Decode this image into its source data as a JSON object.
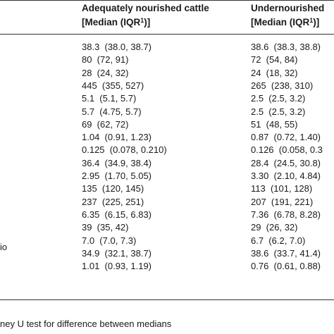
{
  "header": {
    "col1_line1": "Adequately nourished cattle",
    "col1_line2": "[Median (IQR",
    "col1_sup": "1",
    "col1_end": ")]",
    "col2_line1": "Undernourished",
    "col2_line2": "[Median (IQR",
    "col2_sup": "1",
    "col2_end": ")]"
  },
  "rows": [
    {
      "a": "38.3  (38.0, 38.7)",
      "b": "38.6  (38.3, 38.8)"
    },
    {
      "a": "80  (72, 91)",
      "b": "72  (54, 84)"
    },
    {
      "a": "28  (24, 32)",
      "b": "24  (18, 32)"
    },
    {
      "a": "445  (355, 527)",
      "b": "265  (238, 310)"
    },
    {
      "a": "5.1  (5.1, 5.7)",
      "b": "2.5  (2.5, 3.2)"
    },
    {
      "a": "5.7  (4.75, 5.7)",
      "b": "2.5  (2.5, 3.2)"
    },
    {
      "a": "69  (62, 72)",
      "b": "51  (48, 55)"
    },
    {
      "a": "1.04  (0.91, 1.23)",
      "b": "0.87  (0.72, 1.40)"
    },
    {
      "a": "0.125  (0.078, 0.210)",
      "b": "0.126  (0.058, 0.3"
    },
    {
      "a": "36.4  (34.9, 38.4)",
      "b": "28.4  (24.5, 30.8)"
    },
    {
      "a": "2.95  (1.70, 5.05)",
      "b": "3.30  (2.10, 4.84)"
    },
    {
      "a": "135  (120, 145)",
      "b": "113  (101, 128)"
    },
    {
      "a": "237  (225, 251)",
      "b": "207  (191, 221)"
    },
    {
      "a": "6.35  (6.15, 6.83)",
      "b": "7.36  (6.78, 8.28)"
    },
    {
      "a": "39  (35, 42)",
      "b": "29  (26, 32)"
    },
    {
      "a": "7.0  (7.0, 7.3)",
      "b": "6.7  (6.2, 7.0)"
    },
    {
      "a": "34.9  (32.1, 38.7)",
      "b": "38.6  (33.7, 41.4)"
    },
    {
      "a": "1.01  (0.93, 1.19)",
      "b": "0.76  (0.61, 0.88)"
    }
  ],
  "row_label_fragment": "io",
  "footnote": "ney U test for difference between medians"
}
